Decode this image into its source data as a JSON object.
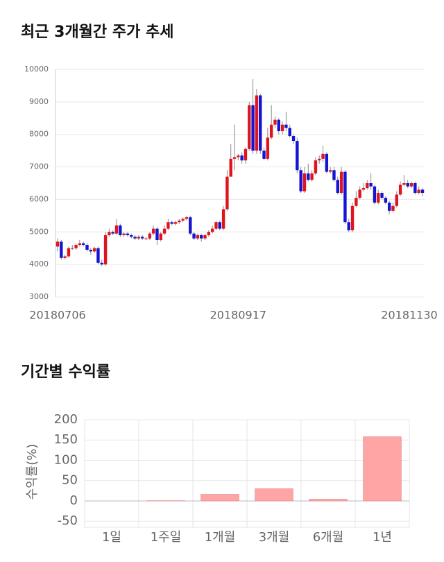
{
  "chart_data": [
    {
      "type": "candlestick",
      "title": "최근 3개월간 주가 추세",
      "categories": [
        "20180706",
        null,
        null,
        null,
        null,
        null,
        null,
        null,
        null,
        null,
        null,
        null,
        null,
        null,
        null,
        null,
        null,
        null,
        null,
        null,
        null,
        null,
        null,
        null,
        null,
        null,
        null,
        null,
        null,
        null,
        null,
        null,
        null,
        null,
        null,
        null,
        null,
        null,
        null,
        null,
        null,
        null,
        null,
        null,
        null,
        null,
        null,
        null,
        null,
        "20180917",
        null,
        null,
        null,
        null,
        null,
        null,
        null,
        null,
        null,
        null,
        null,
        null,
        null,
        null,
        null,
        null,
        null,
        null,
        null,
        null,
        null,
        null,
        null,
        null,
        null,
        null,
        null,
        null,
        null,
        null,
        null,
        null,
        null,
        null,
        null,
        null,
        null,
        null,
        null,
        null,
        null,
        null,
        null,
        null,
        null,
        null,
        null,
        null,
        null,
        "20181130"
      ],
      "open": [
        4550,
        4700,
        4200,
        4250,
        4500,
        4500,
        4600,
        4650,
        4600,
        4450,
        4400,
        4500,
        4050,
        4000,
        4900,
        5000,
        4950,
        5200,
        4900,
        4950,
        4900,
        4850,
        4800,
        4850,
        4800,
        4800,
        4950,
        5100,
        4750,
        4950,
        5100,
        5300,
        5250,
        5300,
        5350,
        5400,
        5450,
        4950,
        4800,
        4900,
        4800,
        4900,
        5000,
        5100,
        5300,
        5100,
        5700,
        6700,
        7250,
        7300,
        7350,
        7200,
        7550,
        8900,
        7500,
        9200,
        7500,
        7250,
        7900,
        8300,
        8450,
        8100,
        8300,
        8200,
        7950,
        7800,
        6900,
        6250,
        6800,
        6600,
        6800,
        7200,
        7250,
        7400,
        6850,
        6900,
        6600,
        6200,
        6850,
        5300,
        5050,
        5800,
        6050,
        6300,
        6350,
        6500,
        6400,
        5900,
        6200,
        6050,
        5900,
        5650,
        5800,
        6150,
        6450,
        6500,
        6400,
        6500,
        6200,
        6300
      ],
      "high": [
        4800,
        4750,
        4300,
        4550,
        4600,
        4650,
        4750,
        4700,
        4650,
        4500,
        4550,
        4550,
        4150,
        5000,
        5100,
        5050,
        5400,
        5250,
        5000,
        5000,
        4950,
        4900,
        4900,
        4900,
        4850,
        5000,
        5200,
        5150,
        5000,
        5200,
        5400,
        5350,
        5350,
        5400,
        5450,
        5500,
        5500,
        5000,
        4950,
        4950,
        4950,
        5050,
        5200,
        5350,
        5350,
        5800,
        6900,
        7700,
        8300,
        7400,
        7450,
        7600,
        9000,
        9700,
        9400,
        9250,
        7600,
        8200,
        8900,
        8550,
        8500,
        8400,
        8700,
        8300,
        8000,
        7900,
        7000,
        7000,
        7100,
        6900,
        7300,
        7350,
        7650,
        7450,
        7000,
        7000,
        6700,
        7000,
        6900,
        5400,
        5900,
        6250,
        6400,
        6500,
        6600,
        6800,
        6450,
        6300,
        6250,
        6100,
        5950,
        5900,
        6250,
        6550,
        6750,
        6600,
        6550,
        6550,
        6400,
        6350
      ],
      "low": [
        4400,
        4150,
        4150,
        4200,
        4450,
        4450,
        4550,
        4550,
        4400,
        4300,
        4350,
        4000,
        3950,
        3950,
        4850,
        4900,
        4900,
        4850,
        4850,
        4850,
        4800,
        4750,
        4750,
        4750,
        4750,
        4750,
        4900,
        4600,
        4700,
        4900,
        5050,
        5200,
        5200,
        5250,
        5300,
        5350,
        4900,
        4750,
        4750,
        4700,
        4750,
        4850,
        4950,
        5050,
        5050,
        5050,
        5650,
        6700,
        6900,
        7200,
        7100,
        7100,
        7500,
        7400,
        7400,
        7400,
        7200,
        7200,
        7850,
        8200,
        8000,
        8000,
        8100,
        7900,
        7700,
        6800,
        6200,
        6200,
        6550,
        6550,
        6750,
        7100,
        7150,
        6800,
        6800,
        6550,
        6150,
        6150,
        5250,
        5000,
        5000,
        5750,
        6000,
        6250,
        6300,
        6300,
        5850,
        5850,
        6000,
        5850,
        5550,
        5600,
        5750,
        6100,
        6400,
        6350,
        6350,
        6150,
        6150,
        6100
      ],
      "close": [
        4700,
        4200,
        4250,
        4500,
        4500,
        4600,
        4650,
        4600,
        4450,
        4400,
        4500,
        4050,
        4000,
        4900,
        5000,
        4950,
        5200,
        4900,
        4950,
        4900,
        4850,
        4800,
        4850,
        4800,
        4800,
        4950,
        5100,
        4750,
        4950,
        5100,
        5300,
        5250,
        5300,
        5350,
        5400,
        5450,
        4950,
        4800,
        4900,
        4800,
        4900,
        5000,
        5100,
        5300,
        5100,
        5700,
        6700,
        7250,
        7300,
        7350,
        7200,
        7550,
        8900,
        7500,
        9200,
        7500,
        7250,
        7900,
        8300,
        8450,
        8100,
        8300,
        8200,
        7950,
        7800,
        6900,
        6250,
        6800,
        6600,
        6800,
        7200,
        7250,
        7400,
        6850,
        6900,
        6600,
        6200,
        6850,
        5300,
        5050,
        5800,
        6050,
        6300,
        6350,
        6500,
        6400,
        5900,
        6200,
        6050,
        5900,
        5650,
        5800,
        6150,
        6450,
        6500,
        6400,
        6500,
        6200,
        6300,
        6200
      ],
      "up_color": "#e0141e",
      "down_color": "#1414d2",
      "ylim": [
        3000,
        10000
      ],
      "yticks": [
        3000,
        4000,
        5000,
        6000,
        7000,
        8000,
        9000,
        10000
      ],
      "grid": true
    },
    {
      "type": "bar",
      "title": "기간별 수익률",
      "ylabel": "수익률(%)",
      "categories": [
        "1일",
        "1주일",
        "1개월",
        "3개월",
        "6개월",
        "1년"
      ],
      "values": [
        0,
        0.5,
        16,
        30,
        4,
        158
      ],
      "color": "#ffa5a5",
      "ylim": [
        -65,
        200
      ],
      "yticks": [
        -50,
        0,
        50,
        100,
        150,
        200
      ],
      "grid": true
    }
  ]
}
